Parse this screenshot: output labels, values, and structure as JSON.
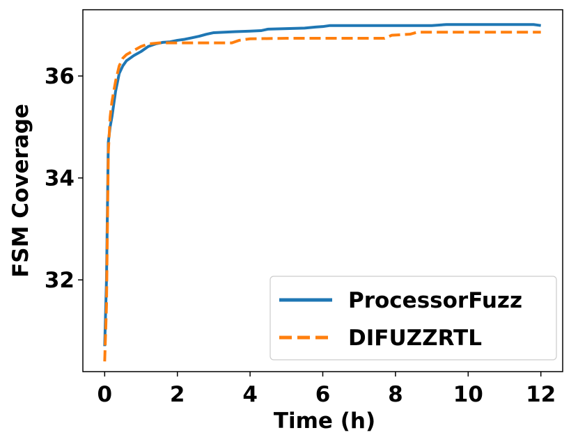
{
  "chart_data": {
    "type": "line",
    "xlabel": "Time (h)",
    "ylabel": "FSM Coverage",
    "xlim": [
      -0.6,
      12.6
    ],
    "ylim": [
      30.2,
      37.3
    ],
    "xticks": [
      0,
      2,
      4,
      6,
      8,
      10,
      12
    ],
    "yticks": [
      32,
      34,
      36
    ],
    "grid": false,
    "legend_position": "bottom-right",
    "series": [
      {
        "name": "ProcessorFuzz",
        "color": "#1f77b4",
        "style": "solid",
        "x": [
          0,
          0.05,
          0.1,
          0.15,
          0.2,
          0.3,
          0.4,
          0.5,
          0.6,
          0.7,
          0.8,
          1.0,
          1.2,
          1.4,
          1.6,
          1.8,
          2.0,
          2.2,
          2.4,
          2.6,
          2.8,
          3.0,
          3.3,
          3.6,
          4.0,
          4.3,
          4.5,
          5.0,
          5.5,
          5.8,
          6.0,
          6.2,
          7.0,
          8.0,
          9.0,
          9.4,
          10.0,
          11.0,
          11.8,
          12.0
        ],
        "y": [
          30.7,
          32.0,
          34.7,
          35.0,
          35.2,
          35.7,
          36.05,
          36.2,
          36.3,
          36.35,
          36.4,
          36.48,
          36.58,
          36.63,
          36.66,
          36.67,
          36.7,
          36.72,
          36.75,
          36.78,
          36.82,
          36.85,
          36.86,
          36.87,
          36.88,
          36.89,
          36.92,
          36.93,
          36.94,
          36.96,
          36.97,
          36.99,
          36.99,
          36.99,
          36.99,
          37.01,
          37.01,
          37.01,
          37.01,
          36.99
        ]
      },
      {
        "name": "DIFUZZRTL",
        "color": "#ff7f0e",
        "style": "dashed",
        "x": [
          0,
          0.05,
          0.1,
          0.15,
          0.2,
          0.3,
          0.4,
          0.5,
          0.6,
          0.8,
          1.0,
          1.2,
          1.5,
          2.0,
          2.5,
          3.0,
          3.5,
          3.7,
          4.0,
          5.0,
          6.0,
          7.0,
          7.7,
          7.9,
          8.4,
          8.6,
          9.5,
          10.5,
          12.0
        ],
        "y": [
          30.4,
          31.5,
          34.5,
          35.2,
          35.5,
          35.9,
          36.2,
          36.35,
          36.42,
          36.5,
          36.58,
          36.63,
          36.65,
          36.65,
          36.65,
          36.65,
          36.65,
          36.7,
          36.73,
          36.74,
          36.74,
          36.74,
          36.74,
          36.8,
          36.82,
          36.86,
          36.86,
          36.86,
          36.86
        ]
      }
    ]
  }
}
